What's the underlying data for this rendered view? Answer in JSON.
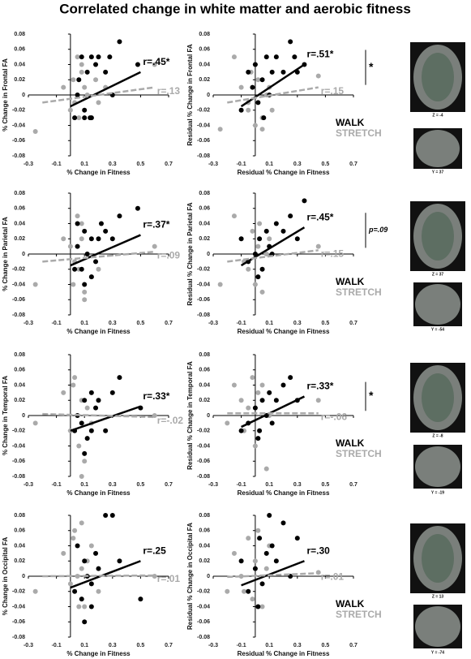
{
  "title": "Correlated change in white matter and aerobic fitness",
  "brain_labels": [
    "Z = -4",
    "Y = 37",
    "Z = 37",
    "Y = -54",
    "Z = -8",
    "Y = -19",
    "Z = 13",
    "Y = -74"
  ],
  "chart_data": [
    {
      "type": "scatter",
      "ylabel": "% Change in Frontal FA",
      "xlabel": "% Change in Fitness",
      "xlim": [
        -0.3,
        0.7
      ],
      "xticks": [
        -0.3,
        -0.1,
        0.1,
        0.3,
        0.5,
        0.7
      ],
      "ylim": [
        -0.08,
        0.08
      ],
      "yticks": [
        -0.08,
        -0.06,
        -0.04,
        -0.02,
        0,
        0.02,
        0.04,
        0.06,
        0.08
      ],
      "series": [
        {
          "color": "#000000",
          "x": [
            0.03,
            0.05,
            0.06,
            0.08,
            0.1,
            0.12,
            0.14,
            0.15,
            0.18,
            0.2,
            0.25,
            0.28,
            0.3,
            0.35,
            0.48,
            0.1,
            0.15
          ],
          "values": [
            -0.03,
            0,
            0.02,
            0.05,
            -0.03,
            0.03,
            -0.03,
            0.05,
            0.04,
            0.05,
            0.03,
            0.05,
            0,
            0.07,
            0.04,
            -0.02,
            -0.03
          ],
          "fit_x": [
            0,
            0.5
          ],
          "fit_y": [
            -0.015,
            0.03
          ],
          "fit_label": "r=.45*"
        },
        {
          "color": "#aaaaaa",
          "x": [
            -0.25,
            -0.05,
            0,
            0.02,
            0.05,
            0.06,
            0.08,
            0.1,
            0.12,
            0.15,
            0.18,
            0.2,
            0.25,
            0.08,
            0.03,
            0.6
          ],
          "values": [
            -0.048,
            0.01,
            -0.02,
            0.02,
            0.05,
            -0.03,
            0.04,
            0.01,
            0,
            -0.03,
            0.02,
            -0.01,
            0.01,
            0.03,
            -0.01,
            0.04
          ],
          "fit_x": [
            -0.2,
            0.6
          ],
          "fit_y": [
            -0.01,
            0.01
          ],
          "fit_label": "r=.13"
        }
      ]
    },
    {
      "type": "scatter",
      "ylabel": "Residual % Change in Frontal FA",
      "xlabel": "Residual % Change in Fitness",
      "xlim": [
        -0.3,
        0.7
      ],
      "xticks": [
        -0.3,
        -0.1,
        0.1,
        0.3,
        0.5,
        0.7
      ],
      "ylim": [
        -0.08,
        0.08
      ],
      "yticks": [
        -0.08,
        -0.06,
        -0.04,
        -0.02,
        0,
        0.02,
        0.04,
        0.06,
        0.08
      ],
      "legend": "lower right",
      "annotation": "*",
      "series": [
        {
          "name": "WALK",
          "color": "#000000",
          "x": [
            -0.1,
            -0.05,
            0,
            0.02,
            0.05,
            0.08,
            0.1,
            0.12,
            0.15,
            0.2,
            0.25,
            0.28,
            0.3,
            0.35,
            -0.02,
            0.06
          ],
          "values": [
            -0.02,
            0.03,
            0.04,
            -0.01,
            0.02,
            0.05,
            0,
            0.03,
            0.05,
            0.03,
            0.07,
            0.05,
            0.03,
            0.04,
            0.01,
            -0.03
          ],
          "fit_x": [
            -0.1,
            0.35
          ],
          "fit_y": [
            -0.015,
            0.04
          ],
          "fit_label": "r=.51*"
        },
        {
          "name": "STRETCH",
          "color": "#aaaaaa",
          "x": [
            -0.25,
            -0.15,
            -0.1,
            -0.05,
            -0.03,
            0,
            0.02,
            0.05,
            0.08,
            0.1,
            0,
            -0.05,
            0.05,
            0.45,
            0.12
          ],
          "values": [
            -0.045,
            0.05,
            0.01,
            -0.02,
            0.03,
            -0.04,
            0.02,
            -0.03,
            0,
            0.01,
            0.04,
            -0.01,
            -0.045,
            0.025,
            -0.02
          ],
          "fit_x": [
            -0.2,
            0.45
          ],
          "fit_y": [
            -0.01,
            0.01
          ],
          "fit_label": "r=.15"
        }
      ]
    },
    {
      "type": "scatter",
      "ylabel": "% Change in Parietal FA",
      "xlabel": "% Change in Fitness",
      "xlim": [
        -0.3,
        0.7
      ],
      "xticks": [
        -0.3,
        -0.1,
        0.1,
        0.3,
        0.5,
        0.7
      ],
      "ylim": [
        -0.08,
        0.08
      ],
      "yticks": [
        -0.08,
        -0.06,
        -0.04,
        -0.02,
        0,
        0.02,
        0.04,
        0.06,
        0.08
      ],
      "series": [
        {
          "color": "#000000",
          "x": [
            0.03,
            0.05,
            0.08,
            0.1,
            0.12,
            0.15,
            0.18,
            0.2,
            0.22,
            0.25,
            0.3,
            0.35,
            0.48,
            0.1,
            0.15,
            0.05
          ],
          "values": [
            -0.02,
            0.01,
            -0.02,
            0.03,
            0,
            0.02,
            -0.01,
            0.02,
            0.04,
            0.03,
            0.02,
            0.05,
            0.06,
            -0.04,
            -0.03,
            0.04
          ],
          "fit_x": [
            0,
            0.5
          ],
          "fit_y": [
            -0.015,
            0.025
          ],
          "fit_label": "r=.37*"
        },
        {
          "color": "#aaaaaa",
          "x": [
            -0.25,
            -0.05,
            0,
            0.02,
            0.05,
            0.06,
            0.08,
            0.1,
            0.12,
            0.15,
            0.2,
            0.08,
            0.03,
            0.6,
            0.1
          ],
          "values": [
            -0.04,
            0.02,
            0.01,
            -0.04,
            0.05,
            -0.02,
            0.02,
            -0.06,
            0,
            -0.03,
            -0.02,
            0.04,
            -0.01,
            0.01,
            -0.05
          ],
          "fit_x": [
            -0.2,
            0.6
          ],
          "fit_y": [
            -0.01,
            0.003
          ],
          "fit_label": "r=.09"
        }
      ]
    },
    {
      "type": "scatter",
      "ylabel": "Residual % Change in Parietal FA",
      "xlabel": "Residual % Change in Fitness",
      "xlim": [
        -0.3,
        0.7
      ],
      "xticks": [
        -0.3,
        -0.1,
        0.1,
        0.3,
        0.5,
        0.7
      ],
      "ylim": [
        -0.08,
        0.08
      ],
      "yticks": [
        -0.08,
        -0.06,
        -0.04,
        -0.02,
        0,
        0.02,
        0.04,
        0.06,
        0.08
      ],
      "legend": "lower right",
      "annotation": "p=.09",
      "series": [
        {
          "name": "WALK",
          "color": "#000000",
          "x": [
            -0.1,
            -0.05,
            0,
            0.03,
            0.05,
            0.08,
            0.1,
            0.15,
            0.2,
            0.25,
            0.3,
            0.35,
            0.02,
            0.12
          ],
          "values": [
            0.02,
            -0.01,
            0,
            0.02,
            -0.02,
            0.03,
            0.01,
            0.04,
            0.03,
            0.05,
            0.02,
            0.07,
            -0.03,
            0
          ],
          "fit_x": [
            -0.1,
            0.35
          ],
          "fit_y": [
            -0.015,
            0.035
          ],
          "fit_label": "r=.45*"
        },
        {
          "name": "STRETCH",
          "color": "#aaaaaa",
          "x": [
            -0.25,
            -0.15,
            -0.1,
            -0.05,
            -0.02,
            0,
            0.02,
            0.05,
            0.08,
            0.1,
            -0.08,
            0.03,
            0.45
          ],
          "values": [
            -0.04,
            0.05,
            0.02,
            -0.02,
            0.03,
            -0.04,
            0.01,
            -0.05,
            0,
            0.02,
            -0.01,
            0.04,
            0.01
          ],
          "fit_x": [
            -0.2,
            0.45
          ],
          "fit_y": [
            -0.01,
            0.005
          ],
          "fit_label": "r=.15"
        }
      ]
    },
    {
      "type": "scatter",
      "ylabel": "% Change in Temporal FA",
      "xlabel": "% Change in Fitness",
      "xlim": [
        -0.3,
        0.7
      ],
      "xticks": [
        -0.3,
        -0.1,
        0.1,
        0.3,
        0.5,
        0.7
      ],
      "ylim": [
        -0.08,
        0.08
      ],
      "yticks": [
        -0.08,
        -0.06,
        -0.04,
        -0.02,
        0,
        0.02,
        0.04,
        0.06,
        0.08
      ],
      "series": [
        {
          "color": "#000000",
          "x": [
            0.03,
            0.05,
            0.08,
            0.1,
            0.12,
            0.15,
            0.18,
            0.2,
            0.25,
            0.3,
            0.35,
            0.5,
            0.1,
            0.15
          ],
          "values": [
            -0.02,
            0,
            -0.01,
            0.02,
            -0.03,
            0.03,
            0.01,
            0.02,
            -0.02,
            0.03,
            0.05,
            0.01,
            -0.05,
            -0.02
          ],
          "fit_x": [
            0,
            0.5
          ],
          "fit_y": [
            -0.02,
            0.012
          ],
          "fit_label": "r=.33*"
        },
        {
          "color": "#aaaaaa",
          "x": [
            -0.25,
            -0.05,
            0,
            0.02,
            0.05,
            0.06,
            0.08,
            0.1,
            0.12,
            0.15,
            0.2,
            0.03,
            0.08,
            0.6
          ],
          "values": [
            -0.01,
            0.03,
            -0.02,
            0.04,
            0,
            -0.04,
            0.02,
            -0.06,
            0.01,
            -0.01,
            0.02,
            0.05,
            -0.08,
            0
          ],
          "fit_x": [
            -0.2,
            0.6
          ],
          "fit_y": [
            0.002,
            -0.002
          ],
          "fit_label": "r=-.02"
        }
      ]
    },
    {
      "type": "scatter",
      "ylabel": "Residual % Change in Temporal FA",
      "xlabel": "Residual % Change in Fitness",
      "xlim": [
        -0.3,
        0.7
      ],
      "xticks": [
        -0.3,
        -0.1,
        0.1,
        0.3,
        0.5,
        0.7
      ],
      "ylim": [
        -0.08,
        0.08
      ],
      "yticks": [
        -0.08,
        -0.06,
        -0.04,
        -0.02,
        0,
        0.02,
        0.04,
        0.06,
        0.08
      ],
      "legend": "lower right",
      "annotation": "*",
      "series": [
        {
          "name": "WALK",
          "color": "#000000",
          "x": [
            -0.1,
            -0.05,
            0,
            0.03,
            0.05,
            0.08,
            0.1,
            0.15,
            0.2,
            0.25,
            0.3,
            0.02,
            0.12
          ],
          "values": [
            -0.02,
            -0.01,
            0.01,
            -0.02,
            0.02,
            0,
            0.03,
            0.02,
            0.04,
            0.05,
            0.02,
            -0.03,
            -0.01
          ],
          "fit_x": [
            -0.1,
            0.35
          ],
          "fit_y": [
            -0.015,
            0.025
          ],
          "fit_label": "r=.33*"
        },
        {
          "name": "STRETCH",
          "color": "#aaaaaa",
          "x": [
            -0.2,
            -0.15,
            -0.1,
            -0.05,
            -0.02,
            0,
            0.02,
            0.05,
            0.08,
            0.1,
            -0.08,
            0.45
          ],
          "values": [
            -0.01,
            0.04,
            0.02,
            0.01,
            0.05,
            -0.04,
            0.03,
            0.04,
            -0.07,
            0,
            -0.02,
            0.02
          ],
          "fit_x": [
            -0.2,
            0.45
          ],
          "fit_y": [
            0.003,
            0.003
          ],
          "fit_label": "r=-.06"
        }
      ]
    },
    {
      "type": "scatter",
      "ylabel": "% Change in Occipital FA",
      "xlabel": "% Change in Fitness",
      "xlim": [
        -0.3,
        0.7
      ],
      "xticks": [
        -0.3,
        -0.1,
        0.1,
        0.3,
        0.5,
        0.7
      ],
      "ylim": [
        -0.08,
        0.08
      ],
      "yticks": [
        -0.08,
        -0.06,
        -0.04,
        -0.02,
        0,
        0.02,
        0.04,
        0.06,
        0.08
      ],
      "series": [
        {
          "color": "#000000",
          "x": [
            0.03,
            0.05,
            0.08,
            0.1,
            0.12,
            0.15,
            0.18,
            0.2,
            0.25,
            0.3,
            0.35,
            0.5,
            0.1,
            0.15
          ],
          "values": [
            -0.02,
            0.04,
            -0.03,
            0.02,
            0,
            -0.04,
            0.03,
            0.01,
            0.08,
            0.08,
            0.02,
            -0.03,
            -0.06,
            -0.01
          ],
          "fit_x": [
            0,
            0.5
          ],
          "fit_y": [
            -0.015,
            0.02
          ],
          "fit_label": "r=.25"
        },
        {
          "color": "#aaaaaa",
          "x": [
            -0.25,
            -0.05,
            0,
            0.02,
            0.05,
            0.06,
            0.08,
            0.1,
            0.12,
            0.15,
            0.2,
            0.03,
            0.08,
            0.6
          ],
          "values": [
            -0.02,
            0.03,
            -0.01,
            0.05,
            0,
            -0.04,
            0.07,
            -0.04,
            0.02,
            0.04,
            -0.02,
            0.06,
            0.01,
            0
          ],
          "fit_x": [
            -0.2,
            0.6
          ],
          "fit_y": [
            0,
            0.001
          ],
          "fit_label": "r=.01"
        }
      ]
    },
    {
      "type": "scatter",
      "ylabel": "Residual % Change in Occipital FA",
      "xlabel": "Residual % Change in Fitness",
      "xlim": [
        -0.3,
        0.7
      ],
      "xticks": [
        -0.3,
        -0.1,
        0.1,
        0.3,
        0.5,
        0.7
      ],
      "ylim": [
        -0.08,
        0.08
      ],
      "yticks": [
        -0.08,
        -0.06,
        -0.04,
        -0.02,
        0,
        0.02,
        0.04,
        0.06,
        0.08
      ],
      "legend": "lower right",
      "series": [
        {
          "name": "WALK",
          "color": "#000000",
          "x": [
            -0.1,
            -0.05,
            0,
            0.03,
            0.05,
            0.08,
            0.1,
            0.15,
            0.2,
            0.25,
            0.3,
            0.02,
            0.12
          ],
          "values": [
            0.02,
            -0.02,
            0.01,
            0.05,
            -0.01,
            0.03,
            0.08,
            0.02,
            0.07,
            0,
            0.05,
            -0.04,
            0.04
          ],
          "fit_x": [
            -0.1,
            0.35
          ],
          "fit_y": [
            -0.012,
            0.02
          ],
          "fit_label": "r=.30"
        },
        {
          "name": "STRETCH",
          "color": "#aaaaaa",
          "x": [
            -0.2,
            -0.15,
            -0.1,
            -0.05,
            -0.02,
            0,
            0.02,
            0.05,
            0.08,
            0.1,
            -0.08,
            0.45
          ],
          "values": [
            -0.02,
            0.03,
            0,
            0.05,
            -0.03,
            0.02,
            0.06,
            -0.04,
            0.01,
            0.04,
            -0.02,
            0.005
          ],
          "fit_x": [
            -0.2,
            0.45
          ],
          "fit_y": [
            -0.001,
            0.004
          ],
          "fit_label": "r=.01"
        }
      ]
    }
  ]
}
